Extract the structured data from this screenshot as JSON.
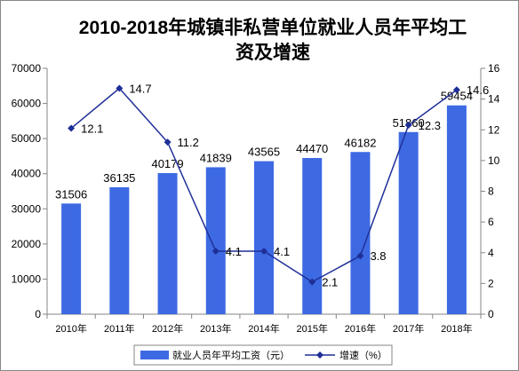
{
  "chart_data": {
    "type": "bar+line",
    "title": "2010-2018年城镇非私营单位就业人员年平均工资及增速",
    "title_lines": [
      "2010-2018年城镇非私营单位就业人员年平均工",
      "资及增速"
    ],
    "categories": [
      "2010年",
      "2011年",
      "2012年",
      "2013年",
      "2014年",
      "2015年",
      "2016年",
      "2017年",
      "2018年"
    ],
    "series": [
      {
        "name": "就业人员年平均工资（元）",
        "type": "bar",
        "axis": "left",
        "color": "#3d6ae3",
        "values": [
          31506,
          36135,
          40179,
          41839,
          43565,
          44470,
          46182,
          51860,
          59454
        ],
        "labels": [
          "31506",
          "36135",
          "40179",
          "41839",
          "43565",
          "44470",
          "46182",
          "51860",
          "59454"
        ]
      },
      {
        "name": "增速（%）",
        "type": "line",
        "axis": "right",
        "color": "#1f2f98",
        "values": [
          12.1,
          14.7,
          11.2,
          4.1,
          4.1,
          2.1,
          3.8,
          12.3,
          14.6
        ],
        "labels": [
          "12.1",
          "14.7",
          "11.2",
          "4.1",
          "4.1",
          "2.1",
          "3.8",
          "12.3",
          "14.6"
        ]
      }
    ],
    "y_left": {
      "min": 0,
      "max": 70000,
      "step": 10000,
      "ticks": [
        "0",
        "10000",
        "20000",
        "30000",
        "40000",
        "50000",
        "60000",
        "70000"
      ]
    },
    "y_right": {
      "min": 0,
      "max": 16,
      "step": 2,
      "ticks": [
        "0",
        "2",
        "4",
        "6",
        "8",
        "10",
        "12",
        "14",
        "16"
      ]
    },
    "grid": false,
    "legend": "bottom"
  }
}
